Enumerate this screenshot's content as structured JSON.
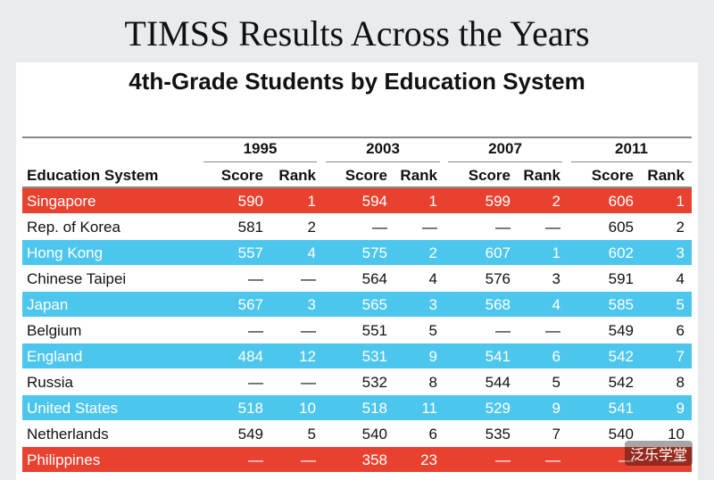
{
  "title": "TIMSS Results Across the Years",
  "subtitle": "4th-Grade Students by Education System",
  "table": {
    "row_header": "Education System",
    "years": [
      "1995",
      "2003",
      "2007",
      "2011"
    ],
    "subheaders": [
      "Score",
      "Rank"
    ],
    "rows": [
      {
        "fill": "#e8412f",
        "cells": [
          "Singapore",
          590,
          1,
          594,
          1,
          599,
          2,
          606,
          1
        ]
      },
      {
        "fill": "#ffffff",
        "cells": [
          "Rep. of Korea",
          581,
          2,
          "—",
          "—",
          "—",
          "—",
          605,
          2
        ]
      },
      {
        "fill": "#4dc6ee",
        "cells": [
          "Hong Kong",
          557,
          4,
          575,
          2,
          607,
          1,
          602,
          3
        ]
      },
      {
        "fill": "#ffffff",
        "cells": [
          "Chinese Taipei",
          "—",
          "—",
          564,
          4,
          576,
          3,
          591,
          4
        ]
      },
      {
        "fill": "#4dc6ee",
        "cells": [
          "Japan",
          567,
          3,
          565,
          3,
          568,
          4,
          585,
          5
        ]
      },
      {
        "fill": "#ffffff",
        "cells": [
          "Belgium",
          "—",
          "—",
          551,
          5,
          "—",
          "—",
          549,
          6
        ]
      },
      {
        "fill": "#4dc6ee",
        "cells": [
          "England",
          484,
          12,
          531,
          9,
          541,
          6,
          542,
          7
        ]
      },
      {
        "fill": "#ffffff",
        "cells": [
          "Russia",
          "—",
          "—",
          532,
          8,
          544,
          5,
          542,
          8
        ]
      },
      {
        "fill": "#4dc6ee",
        "cells": [
          "United States",
          518,
          10,
          518,
          11,
          529,
          9,
          541,
          9
        ]
      },
      {
        "fill": "#ffffff",
        "cells": [
          "Netherlands",
          549,
          5,
          540,
          6,
          535,
          7,
          540,
          10
        ]
      },
      {
        "fill": "#e8412f",
        "cells": [
          "Philippines",
          "—",
          "—",
          358,
          23,
          "—",
          "—",
          "—",
          "—"
        ]
      }
    ]
  },
  "watermark": "泛乐学堂"
}
